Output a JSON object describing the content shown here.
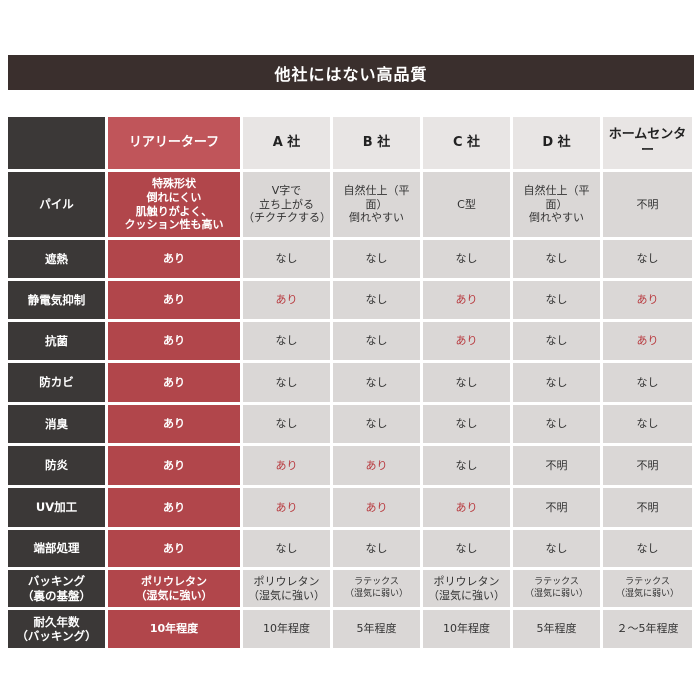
{
  "title": "他社にはない高品質",
  "table": {
    "columns": [
      "リアリーターフ",
      "A 社",
      "B 社",
      "C 社",
      "D 社",
      "ホームセンター"
    ],
    "rows": [
      {
        "label": "パイル",
        "cells": [
          "特殊形状\n倒れにくい\n肌触りがよく、\nクッション性も高い",
          "V字で\n立ち上がる\n（チクチクする）",
          "自然仕上（平面）\n倒れやすい",
          "C型",
          "自然仕上（平面）\n倒れやすい",
          "不明"
        ]
      },
      {
        "label": "遮熱",
        "cells": [
          "あり",
          "なし",
          "なし",
          "なし",
          "なし",
          "なし"
        ]
      },
      {
        "label": "静電気抑制",
        "cells": [
          "あり",
          {
            "text": "あり",
            "color": "#b83a3f"
          },
          "なし",
          {
            "text": "あり",
            "color": "#b83a3f"
          },
          "なし",
          {
            "text": "あり",
            "color": "#b83a3f"
          }
        ]
      },
      {
        "label": "抗菌",
        "cells": [
          "あり",
          "なし",
          "なし",
          {
            "text": "あり",
            "color": "#b83a3f"
          },
          "なし",
          {
            "text": "あり",
            "color": "#b83a3f"
          }
        ]
      },
      {
        "label": "防カビ",
        "cells": [
          "あり",
          "なし",
          "なし",
          "なし",
          "なし",
          "なし"
        ]
      },
      {
        "label": "消臭",
        "cells": [
          "あり",
          "なし",
          "なし",
          "なし",
          "なし",
          "なし"
        ]
      },
      {
        "label": "防炎",
        "cells": [
          "あり",
          {
            "text": "あり",
            "color": "#b83a3f"
          },
          {
            "text": "あり",
            "color": "#b83a3f"
          },
          "なし",
          "不明",
          "不明"
        ]
      },
      {
        "label": "UV加工",
        "cells": [
          "あり",
          {
            "text": "あり",
            "color": "#b83a3f"
          },
          {
            "text": "あり",
            "color": "#b83a3f"
          },
          {
            "text": "あり",
            "color": "#b83a3f"
          },
          "不明",
          "不明"
        ]
      },
      {
        "label": "端部処理",
        "cells": [
          "あり",
          "なし",
          "なし",
          "なし",
          "なし",
          "なし"
        ]
      },
      {
        "label": "バッキング\n（裏の基盤）",
        "cells": [
          "ポリウレタン\n（湿気に強い）",
          "ポリウレタン\n（湿気に強い）",
          "ラテックス\n（湿気に弱い）",
          "ポリウレタン\n（湿気に強い）",
          "ラテックス\n（湿気に弱い）",
          "ラテックス\n（湿気に弱い）"
        ]
      },
      {
        "label": "耐久年数\n（バッキング）",
        "cells": [
          "10年程度",
          "10年程度",
          "5年程度",
          "10年程度",
          "5年程度",
          "２～5年程度"
        ]
      }
    ]
  }
}
